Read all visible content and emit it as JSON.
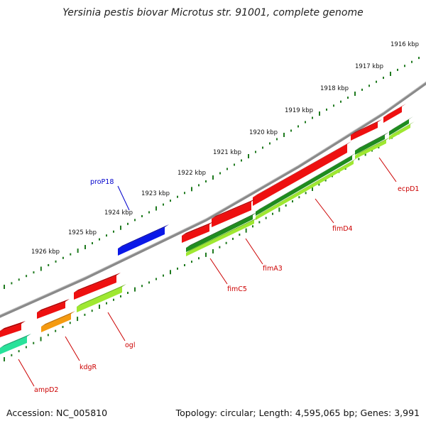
{
  "title": "Yersinia pestis biovar Microtus str. 91001, complete genome",
  "footer": {
    "accession": "Accession: NC_005810",
    "summary": "Topology: circular; Length: 4,595,065 bp; Genes: 3,991"
  },
  "colors": {
    "backbone": "#808080",
    "tick": "#1f7a1f",
    "label_red": "#cc0000",
    "label_blue": "#0000cc",
    "gene_red": "#ee1010",
    "gene_blue": "#0a18e8",
    "gene_dark_green": "#1e8c1e",
    "gene_lime": "#9fe830",
    "gene_orange": "#f59a10",
    "gene_teal": "#28e29a"
  },
  "ruler": [
    {
      "label": "1916 kbp"
    },
    {
      "label": "1917 kbp"
    },
    {
      "label": "1918 kbp"
    },
    {
      "label": "1919 kbp"
    },
    {
      "label": "1920 kbp"
    },
    {
      "label": "1921 kbp"
    },
    {
      "label": "1922 kbp"
    },
    {
      "label": "1923 kbp"
    },
    {
      "label": "1924 kbp"
    },
    {
      "label": "1925 kbp"
    },
    {
      "label": "1926 kbp"
    }
  ],
  "gene_labels": [
    {
      "name": "proP18",
      "color": "blue"
    },
    {
      "name": "ecpD1",
      "color": "red"
    },
    {
      "name": "fimD4",
      "color": "red"
    },
    {
      "name": "fimA3",
      "color": "red"
    },
    {
      "name": "fimC5",
      "color": "red"
    },
    {
      "name": "ogl",
      "color": "red"
    },
    {
      "name": "kdgR",
      "color": "red"
    },
    {
      "name": "ampD2",
      "color": "red"
    }
  ]
}
